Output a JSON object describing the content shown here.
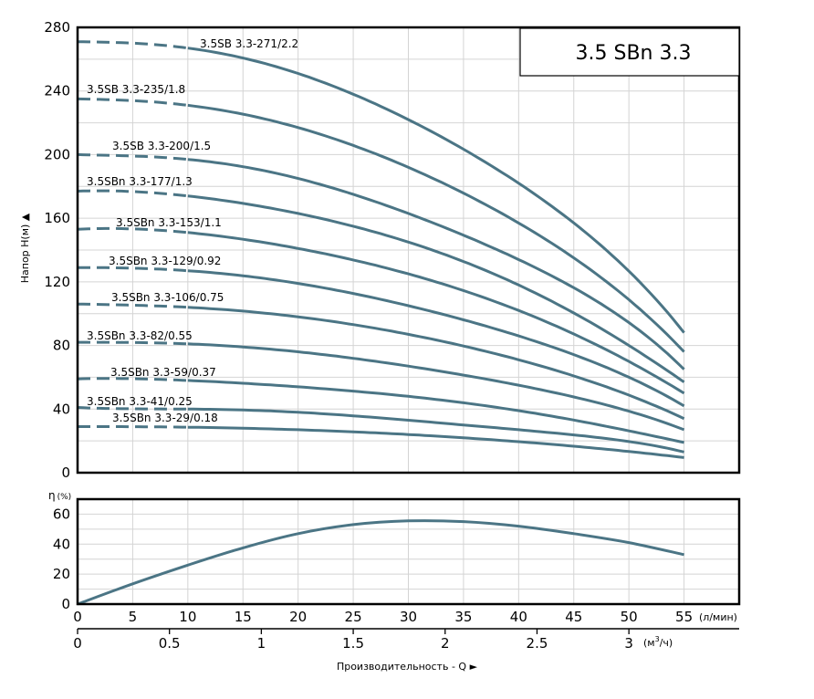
{
  "chart_data": [
    {
      "type": "line",
      "title": "3.5 SBn 3.3",
      "ylabel": "Напор H(м) ▲",
      "ylim": [
        0,
        280
      ],
      "y_ticks": [
        "0",
        "40",
        "80",
        "120",
        "160",
        "200",
        "240",
        "280"
      ],
      "xlim": [
        0,
        60
      ],
      "grid": true,
      "line_color": "#4b7585",
      "series": [
        {
          "name": "3.5SB 3.3-271/2.2",
          "x": [
            0,
            10,
            20,
            30,
            40,
            55
          ],
          "y": [
            271,
            267,
            251,
            222,
            182,
            88
          ]
        },
        {
          "name": "3.5SB 3.3-235/1.8",
          "x": [
            0,
            10,
            20,
            30,
            40,
            55
          ],
          "y": [
            235,
            231,
            217,
            192,
            157,
            76
          ]
        },
        {
          "name": "3.5SB 3.3-200/1.5",
          "x": [
            0,
            10,
            20,
            30,
            40,
            55
          ],
          "y": [
            200,
            197,
            185,
            163,
            134,
            65
          ]
        },
        {
          "name": "3.5SBn 3.3-177/1.3",
          "x": [
            0,
            10,
            20,
            30,
            40,
            55
          ],
          "y": [
            177,
            174,
            163,
            145,
            118,
            57
          ]
        },
        {
          "name": "3.5SBn 3.3-153/1.1",
          "x": [
            0,
            10,
            20,
            30,
            40,
            55
          ],
          "y": [
            153,
            151,
            141,
            125,
            102,
            50
          ]
        },
        {
          "name": "3.5SBn 3.3-129/0.92",
          "x": [
            0,
            10,
            20,
            30,
            40,
            55
          ],
          "y": [
            129,
            127,
            119,
            105,
            86,
            42
          ]
        },
        {
          "name": "3.5SBn 3.3-106/0.75",
          "x": [
            0,
            10,
            20,
            30,
            40,
            55
          ],
          "y": [
            106,
            104,
            98,
            87,
            71,
            34
          ]
        },
        {
          "name": "3.5SBn 3.3-82/0.55",
          "x": [
            0,
            10,
            20,
            30,
            40,
            55
          ],
          "y": [
            82,
            81,
            76,
            67,
            55,
            27
          ]
        },
        {
          "name": "3.5SBn 3.3-59/0.37",
          "x": [
            0,
            10,
            20,
            30,
            40,
            55
          ],
          "y": [
            59,
            58,
            54,
            48,
            39,
            19
          ]
        },
        {
          "name": "3.5SBn 3.3-41/0.25",
          "x": [
            0,
            10,
            20,
            30,
            40,
            55
          ],
          "y": [
            41,
            40,
            38,
            33,
            27,
            13
          ]
        },
        {
          "name": "3.5SBn 3.3-29/0.18",
          "x": [
            0,
            10,
            20,
            30,
            40,
            55
          ],
          "y": [
            29,
            28.6,
            27,
            24,
            19.5,
            9.5
          ]
        }
      ]
    },
    {
      "type": "line",
      "ylabel": "η",
      "ylabel_unit": "(%)",
      "ylim": [
        0,
        70
      ],
      "y_ticks": [
        "0",
        "20",
        "40",
        "60"
      ],
      "xlim": [
        0,
        60
      ],
      "grid": true,
      "line_color": "#4b7585",
      "series": [
        {
          "x": [
            0,
            5,
            10,
            15,
            20,
            25,
            30,
            35,
            40,
            45,
            50,
            55
          ],
          "y": [
            0,
            13.5,
            26,
            37.5,
            47,
            53,
            55.5,
            55,
            52,
            47,
            41,
            33
          ]
        }
      ],
      "x_ticks_lmin": [
        "0",
        "5",
        "10",
        "15",
        "20",
        "25",
        "30",
        "35",
        "40",
        "45",
        "50",
        "55"
      ],
      "x_unit_lmin": "(л/мин)",
      "x_ticks_m3h": [
        "0",
        "0.5",
        "1",
        "1.5",
        "2",
        "2.5",
        "3"
      ],
      "x_unit_m3h_base": "(м",
      "x_unit_m3h_sup": "3",
      "x_unit_m3h_tail": "/ч)",
      "xlabel": "Производительность - Q  ►"
    }
  ]
}
